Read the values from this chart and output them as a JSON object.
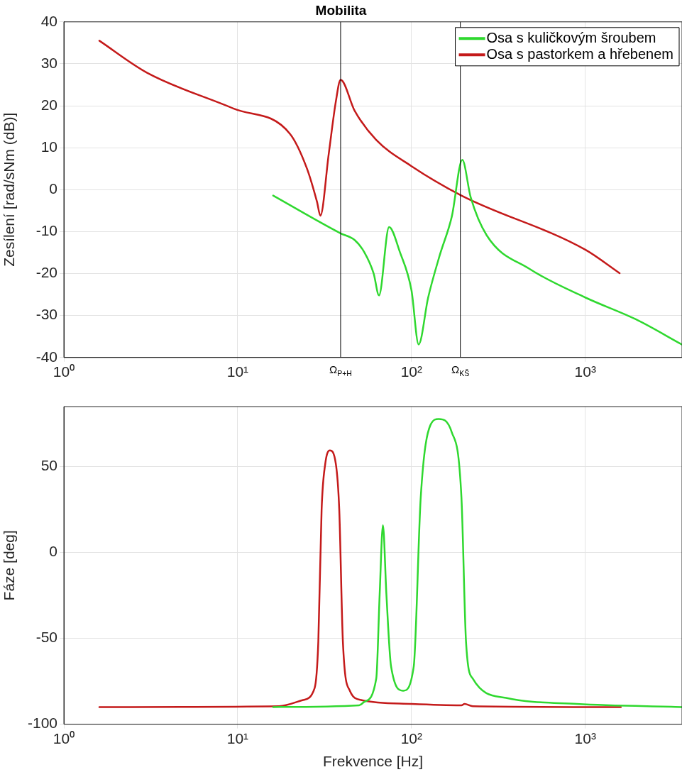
{
  "chart_data": [
    {
      "type": "line",
      "log": "x",
      "title": "Mobilita",
      "ylabel": "Zesílení [rad/sNm (dB)]",
      "xlim": [
        1,
        3600
      ],
      "ylim": [
        -40,
        40
      ],
      "xticks": [
        {
          "value": 1,
          "label": "10⁰"
        },
        {
          "value": 10,
          "label": "10¹"
        },
        {
          "value": 100,
          "label": "10²"
        },
        {
          "value": 1000,
          "label": "10³"
        }
      ],
      "yticks": [
        -40,
        -30,
        -20,
        -10,
        0,
        10,
        20,
        30,
        40
      ],
      "grid": true,
      "legend": "top right",
      "marker": "none",
      "line_style": "solid",
      "ref_lines": [
        {
          "axis": "x",
          "value": 39.1,
          "label": "Ω$_{P+H}$",
          "color": "#000000"
        },
        {
          "axis": "x",
          "value": 191,
          "label": "Ω$_{KŠ}$",
          "color": "#000000"
        }
      ],
      "series": [
        {
          "name": "Osa s kuličkovým šroubem",
          "color": "#2fd82f",
          "x": [
            16,
            39.1,
            47.1,
            53.5,
            60.6,
            65,
            74.3,
            85.8,
            100,
            109.9,
            124.7,
            145.7,
            170.6,
            196,
            219,
            271,
            478,
            1000,
            1952,
            3590
          ],
          "values": [
            -1.4,
            -10.4,
            -12,
            -14.9,
            -20,
            -25.2,
            -8.9,
            -14.9,
            -24,
            -36.9,
            -25.7,
            -15.5,
            -6.4,
            7.1,
            -1.8,
            -10.9,
            -18.9,
            -25.7,
            -30.9,
            -36.9
          ]
        },
        {
          "name": "Osa s pastorkem a hřebenem",
          "color": "#c41a1a",
          "x": [
            1.6,
            3,
            9.5,
            20,
            25,
            28.6,
            29.9,
            33.4,
            36.7,
            39.1,
            47.1,
            62.5,
            100,
            193.8,
            1000,
            1575
          ],
          "values": [
            35.5,
            27.9,
            19.3,
            13.3,
            5.1,
            -2.9,
            -6.2,
            8.5,
            21,
            26.2,
            18.8,
            11.9,
            5.6,
            -1.4,
            -14.3,
            -19.9
          ]
        }
      ]
    },
    {
      "type": "line",
      "log": "x",
      "xlabel": "Frekvence [Hz]",
      "ylabel": "Fáze [deg]",
      "xlim": [
        1,
        3600
      ],
      "ylim": [
        -100,
        85
      ],
      "xticks": [
        {
          "value": 1,
          "label": "10⁰"
        },
        {
          "value": 10,
          "label": "10¹"
        },
        {
          "value": 100,
          "label": "10²"
        },
        {
          "value": 1000,
          "label": "10³"
        }
      ],
      "yticks": [
        -100,
        -50,
        0,
        50
      ],
      "grid": true,
      "marker": "none",
      "line_style": "solid",
      "series": [
        {
          "color": "#2fd82f",
          "x": [
            16,
            50,
            53.5,
            62.7,
            65.6,
            68.5,
            71.7,
            76.3,
            89.5,
            103,
            113,
            128.6,
            143.4,
            170.6,
            193.8,
            206,
            225,
            350,
            894,
            3590
          ],
          "values": [
            -90,
            -89,
            -87,
            -73.4,
            -24.2,
            15.9,
            -24.2,
            -66.4,
            -80.5,
            -66.4,
            32,
            74.3,
            77.8,
            70,
            32,
            -52.3,
            -73.4,
            -84.7,
            -88.2,
            -90
          ]
        },
        {
          "color": "#c41a1a",
          "x": [
            1.6,
            17.3,
            23.6,
            27.7,
            29.1,
            30.4,
            31.9,
            33.9,
            36.7,
            38.4,
            40.3,
            44.2,
            51.8,
            100,
            193.8,
            202,
            225,
            1601
          ],
          "values": [
            -90,
            -89.5,
            -86,
            -79,
            -52,
            25,
            51.7,
            59.5,
            51.7,
            25,
            -52,
            -80.5,
            -86,
            -88.2,
            -89,
            -88.2,
            -89.5,
            -90
          ]
        }
      ]
    }
  ]
}
